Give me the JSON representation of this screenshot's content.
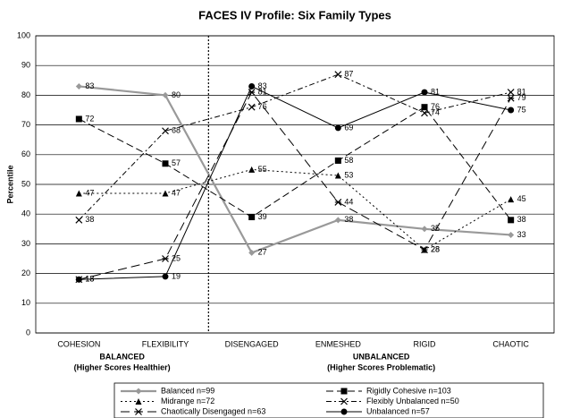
{
  "chart_data": {
    "type": "line",
    "title": "FACES IV Profile: Six Family Types",
    "y_label": "Percentile",
    "categories": [
      "COHESION",
      "FLEXIBILITY",
      "DISENGAGED",
      "ENMESHED",
      "RIGID",
      "CHAOTIC"
    ],
    "groups": [
      {
        "label": "BALANCED",
        "sublabel": "(Higher Scores Healthier)"
      },
      {
        "label": "UNBALANCED",
        "sublabel": "(Higher Scores Problematic)"
      }
    ],
    "ylim": [
      0,
      100
    ],
    "yticks": [
      0,
      10,
      20,
      30,
      40,
      50,
      60,
      70,
      80,
      90,
      100
    ],
    "grid": true,
    "series": [
      {
        "name": "Balanced n=99",
        "color": "#999999",
        "marker": "diamond",
        "dash": "solid",
        "values": [
          83,
          80,
          27,
          38,
          35,
          33
        ]
      },
      {
        "name": "Rigidly Cohesive n=103",
        "color": "#000000",
        "marker": "square",
        "dash": "dashed",
        "values": [
          72,
          57,
          39,
          58,
          76,
          38
        ]
      },
      {
        "name": "Midrange n=72",
        "color": "#000000",
        "marker": "triangle",
        "dash": "dotted",
        "values": [
          47,
          47,
          55,
          53,
          28,
          45
        ]
      },
      {
        "name": "Flexibly Unbalanced n=50",
        "color": "#000000",
        "marker": "x",
        "dash": "dashdot",
        "values": [
          38,
          68,
          76,
          87,
          74,
          81
        ]
      },
      {
        "name": "Chaotically Disengaged n=63",
        "color": "#000000",
        "marker": "asterisk",
        "dash": "longdash",
        "values": [
          18,
          25,
          81,
          44,
          28,
          79
        ]
      },
      {
        "name": "Unbalanced n=57",
        "color": "#000000",
        "marker": "circle",
        "dash": "solid",
        "values": [
          18,
          19,
          83,
          69,
          81,
          75
        ]
      }
    ]
  }
}
